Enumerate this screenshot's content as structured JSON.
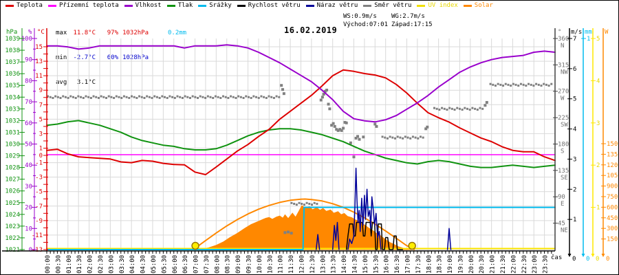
{
  "title": "16.02.2019",
  "legend": [
    {
      "label": "Teplota",
      "color": "#dd0000",
      "text_color": "#000000"
    },
    {
      "label": "Přízemní teplota",
      "color": "#ff00ff",
      "text_color": "#000000"
    },
    {
      "label": "Vlhkost",
      "color": "#9900cc",
      "text_color": "#000000"
    },
    {
      "label": "Tlak",
      "color": "#109310",
      "text_color": "#000000"
    },
    {
      "label": "Srážky",
      "color": "#00bbee",
      "text_color": "#000000"
    },
    {
      "label": "Rychlost větru",
      "color": "#000000",
      "text_color": "#000000"
    },
    {
      "label": "Náraz větru",
      "color": "#000099",
      "text_color": "#000000"
    },
    {
      "label": "Směr větru",
      "color": "#808080",
      "text_color": "#000000"
    },
    {
      "label": "UV index",
      "color": "#f0e000",
      "text_color": "#e8d800"
    },
    {
      "label": "Solar",
      "color": "#ff8800",
      "text_color": "#ff8800"
    }
  ],
  "stats": {
    "max_label": "max",
    "max_temp": "11.8°C",
    "max_hum": "97%",
    "max_pres": "1032hPa",
    "precip": "0.2mm",
    "min_label": "min",
    "min_temp": "-2.7°C",
    "min_hum": "60%",
    "min_pres": "1028hPa",
    "avg_label": "avg",
    "avg_temp": "3.1°C"
  },
  "wind_stats": {
    "ws": "WS:0.9m/s",
    "wg": "WG:2.7m/s",
    "sunrise": "Východ:07:01",
    "sunset": "Západ:17:15"
  },
  "colors": {
    "temp": "#dd0000",
    "ground_temp": "#ff00ff",
    "humidity": "#9900cc",
    "pressure": "#109310",
    "precip": "#00bbee",
    "wind_speed": "#000000",
    "wind_gust": "#000099",
    "wind_dir": "#808080",
    "uv": "#ffe800",
    "uv_text": "#e8d800",
    "solar": "#ff8800",
    "grid": "#d9d9d9",
    "axis_dir": "#404040",
    "dir_label": "#707070",
    "sun_fill": "#ffee00",
    "sun_stroke": "#997700"
  },
  "chart_data": {
    "type": "line",
    "title": "16.02.2019",
    "xlabel": "čas",
    "x_hours_range": [
      0,
      24
    ],
    "grid": true,
    "time_labels": [
      "00:00",
      "00:30",
      "01:00",
      "01:30",
      "02:00",
      "02:30",
      "03:00",
      "03:30",
      "04:00",
      "04:30",
      "05:00",
      "05:30",
      "06:00",
      "06:30",
      "07:00",
      "07:30",
      "08:00",
      "08:30",
      "09:00",
      "09:30",
      "10:00",
      "10:30",
      "11:00",
      "11:30",
      "12:00",
      "12:30",
      "13:00",
      "13:30",
      "14:00",
      "14:30",
      "15:00",
      "15:30",
      "16:00",
      "16:30",
      "17:00",
      "17:30",
      "18:00",
      "18:30",
      "19:00",
      "19:30",
      "20:00",
      "20:30",
      "21:00",
      "21:30",
      "22:00",
      "22:30",
      "23:00",
      "23:30"
    ],
    "axes": {
      "temp_c": {
        "header": "°C",
        "min": -13,
        "max": 15,
        "tick_step": 1,
        "label_values": [
          15,
          13,
          11,
          9,
          7,
          5,
          3,
          1,
          0,
          -1,
          -3,
          -5,
          -7,
          -9,
          -11,
          -13
        ]
      },
      "humidity_pct": {
        "header": "%",
        "min": 0,
        "max": 100,
        "tick_step": 5,
        "label_values": [
          100,
          90,
          80,
          70,
          60,
          50,
          40,
          30,
          20,
          10,
          0
        ]
      },
      "pressure_hpa": {
        "header": "hPa",
        "min": 1021,
        "max": 1039,
        "tick_step": 1,
        "label_values": [
          1039,
          1038,
          1037,
          1036,
          1035,
          1034,
          1033,
          1032,
          1031,
          1030,
          1029,
          1028,
          1027,
          1026,
          1025,
          1024,
          1023,
          1022,
          1021
        ]
      },
      "wind_dir_deg": {
        "header": "°",
        "min": 0,
        "max": 360,
        "tick_step": 45,
        "compass": [
          [
            360,
            "N"
          ],
          [
            315,
            "NW"
          ],
          [
            270,
            "W"
          ],
          [
            225,
            "SW"
          ],
          [
            180,
            "S"
          ],
          [
            135,
            "SE"
          ],
          [
            90,
            "E"
          ],
          [
            45,
            "NE"
          ]
        ]
      },
      "wind_ms": {
        "header": "m/s",
        "min": 0,
        "max": 7,
        "tick_step": 1,
        "label_values": [
          7,
          6,
          5,
          4,
          3,
          2,
          1
        ],
        "zero_label": "0"
      },
      "precip_mm": {
        "header": "mm",
        "min": 0,
        "max": 1,
        "label_values": [
          1
        ],
        "zero_label": "0"
      },
      "uv_index": {
        "header": "",
        "min": 0,
        "max": 5,
        "tick_step": 1,
        "label_values": [
          5,
          4,
          3,
          2,
          1
        ],
        "zero_label": "0"
      },
      "solar_w": {
        "header": "W",
        "min": 0,
        "max": 1500,
        "tick_step": 150,
        "label_values": [
          1500,
          1350,
          1200,
          1050,
          900,
          750,
          600,
          450,
          300,
          150
        ],
        "zero_label": "0"
      }
    },
    "series": {
      "teplota_c": {
        "step_h": 0.5,
        "values": [
          0.7,
          0.85,
          0.2,
          -0.2,
          -0.3,
          -0.4,
          -0.5,
          -0.9,
          -1.0,
          -0.7,
          -0.8,
          -1.1,
          -1.25,
          -1.3,
          -2.3,
          -2.65,
          -1.6,
          -0.5,
          0.6,
          1.5,
          2.6,
          3.6,
          5.0,
          6.1,
          7.2,
          8.3,
          9.6,
          11.0,
          11.8,
          11.6,
          11.3,
          11.1,
          10.7,
          9.8,
          8.6,
          7.2,
          5.9,
          5.2,
          4.6,
          3.8,
          3.1,
          2.4,
          1.9,
          1.2,
          0.7,
          0.5,
          0.5,
          -0.2,
          -0.7
        ]
      },
      "vlhkost_pct": {
        "step_h": 0.5,
        "values": [
          96.5,
          96.5,
          96,
          95,
          95.5,
          96.5,
          96.5,
          96.5,
          96.5,
          96.5,
          96.5,
          96.5,
          96.5,
          95.5,
          96.5,
          96.5,
          96.5,
          97,
          96.5,
          95.5,
          93.5,
          91,
          88.5,
          85.5,
          82.5,
          79.5,
          75.5,
          71,
          65.5,
          62,
          61,
          60.5,
          61.5,
          63.5,
          66.5,
          69.5,
          73,
          77,
          80.5,
          84,
          86.5,
          88.5,
          90,
          91,
          91.5,
          92,
          93.5,
          94,
          93.5
        ]
      },
      "tlak_hpa": {
        "step_h": 0.5,
        "values": [
          1031.6,
          1031.7,
          1031.9,
          1032.0,
          1031.8,
          1031.6,
          1031.3,
          1031.0,
          1030.6,
          1030.3,
          1030.1,
          1029.9,
          1029.8,
          1029.6,
          1029.5,
          1029.5,
          1029.6,
          1029.9,
          1030.3,
          1030.7,
          1031.0,
          1031.2,
          1031.3,
          1031.3,
          1031.2,
          1031.0,
          1030.8,
          1030.5,
          1030.2,
          1029.8,
          1029.4,
          1029.1,
          1028.8,
          1028.6,
          1028.4,
          1028.3,
          1028.5,
          1028.6,
          1028.5,
          1028.3,
          1028.1,
          1028.0,
          1028.0,
          1028.1,
          1028.2,
          1028.1,
          1028.0,
          1028.1,
          1028.2
        ]
      },
      "prizemni_teplota_c": [
        [
          0,
          0.1
        ],
        [
          24,
          0.1
        ]
      ],
      "srazky_mm": [
        [
          0,
          0
        ],
        [
          12.1,
          0
        ],
        [
          12.15,
          0.2
        ],
        [
          24,
          0.2
        ]
      ],
      "uv_index": [
        [
          0,
          0
        ],
        [
          24,
          0
        ]
      ],
      "solar_w": [
        [
          7.15,
          0
        ],
        [
          7.35,
          8
        ],
        [
          7.65,
          25
        ],
        [
          8.0,
          60
        ],
        [
          8.35,
          110
        ],
        [
          8.65,
          170
        ],
        [
          9.0,
          230
        ],
        [
          9.35,
          300
        ],
        [
          9.65,
          355
        ],
        [
          10.0,
          400
        ],
        [
          10.15,
          420
        ],
        [
          10.35,
          445
        ],
        [
          10.5,
          455
        ],
        [
          10.65,
          430
        ],
        [
          10.85,
          462
        ],
        [
          11.0,
          475
        ],
        [
          11.15,
          445
        ],
        [
          11.25,
          492
        ],
        [
          11.4,
          438
        ],
        [
          11.6,
          515
        ],
        [
          11.75,
          458
        ],
        [
          11.9,
          540
        ],
        [
          12.05,
          622
        ],
        [
          12.2,
          585
        ],
        [
          12.4,
          608
        ],
        [
          12.55,
          565
        ],
        [
          12.75,
          592
        ],
        [
          12.9,
          558
        ],
        [
          13.05,
          582
        ],
        [
          13.2,
          542
        ],
        [
          13.4,
          562
        ],
        [
          13.55,
          515
        ],
        [
          13.75,
          538
        ],
        [
          13.9,
          495
        ],
        [
          14.05,
          512
        ],
        [
          14.2,
          470
        ],
        [
          14.4,
          452
        ],
        [
          14.55,
          425
        ],
        [
          14.75,
          398
        ],
        [
          14.9,
          368
        ],
        [
          15.05,
          338
        ],
        [
          15.2,
          305
        ],
        [
          15.4,
          268
        ],
        [
          15.55,
          232
        ],
        [
          15.75,
          198
        ],
        [
          15.9,
          163
        ],
        [
          16.05,
          130
        ],
        [
          16.2,
          100
        ],
        [
          16.4,
          72
        ],
        [
          16.55,
          46
        ],
        [
          16.75,
          27
        ],
        [
          16.9,
          13
        ],
        [
          17.05,
          5
        ],
        [
          17.25,
          0
        ]
      ],
      "solar_model_w": [
        [
          6.95,
          0
        ],
        [
          7.0,
          18
        ],
        [
          7.5,
          128
        ],
        [
          8.0,
          235
        ],
        [
          8.5,
          335
        ],
        [
          9.0,
          425
        ],
        [
          9.5,
          505
        ],
        [
          10.0,
          572
        ],
        [
          10.5,
          625
        ],
        [
          11.0,
          668
        ],
        [
          11.5,
          698
        ],
        [
          12.0,
          714
        ],
        [
          12.2,
          716
        ],
        [
          12.5,
          709
        ],
        [
          13.0,
          689
        ],
        [
          13.5,
          650
        ],
        [
          14.0,
          598
        ],
        [
          14.5,
          530
        ],
        [
          15.0,
          450
        ],
        [
          15.5,
          360
        ],
        [
          16.0,
          263
        ],
        [
          16.5,
          160
        ],
        [
          17.0,
          55
        ],
        [
          17.35,
          0
        ]
      ],
      "rychlost_vetru_ms": [
        [
          [
            14.15,
            0
          ],
          [
            14.22,
            0.45
          ],
          [
            14.3,
            0.85
          ],
          [
            14.45,
            0.85
          ],
          [
            14.5,
            0.45
          ],
          [
            14.57,
            0.45
          ],
          [
            14.63,
            0.9
          ],
          [
            14.9,
            0.9
          ],
          [
            14.95,
            0.45
          ],
          [
            15.02,
            0.45
          ],
          [
            15.08,
            0.9
          ],
          [
            15.27,
            0.9
          ],
          [
            15.32,
            0.45
          ],
          [
            15.38,
            0.9
          ],
          [
            15.48,
            0.9
          ],
          [
            15.53,
            0
          ],
          [
            15.6,
            0
          ],
          [
            15.65,
            0.85
          ],
          [
            15.8,
            0.85
          ],
          [
            15.85,
            0
          ],
          [
            15.95,
            0
          ],
          [
            16.0,
            0.4
          ],
          [
            16.1,
            0.4
          ],
          [
            16.17,
            0
          ],
          [
            16.35,
            0
          ],
          [
            16.4,
            0.45
          ],
          [
            16.5,
            0.45
          ],
          [
            16.55,
            0
          ],
          [
            16.8,
            0
          ]
        ]
      ],
      "naraz_vetru_ms": [
        [
          [
            12.72,
            0
          ],
          [
            12.8,
            0.5
          ],
          [
            12.88,
            0
          ]
        ],
        [
          [
            13.5,
            0
          ],
          [
            13.58,
            0.8
          ],
          [
            13.65,
            0.3
          ],
          [
            13.72,
            0.9
          ],
          [
            13.8,
            0
          ]
        ],
        [
          [
            14.22,
            0
          ],
          [
            14.3,
            0.35
          ],
          [
            14.4,
            0.2
          ],
          [
            14.5,
            0.45
          ],
          [
            14.55,
            1.4
          ],
          [
            14.6,
            2.7
          ],
          [
            14.65,
            1.6
          ],
          [
            14.7,
            0.9
          ],
          [
            14.75,
            1.3
          ],
          [
            14.8,
            0.6
          ],
          [
            14.87,
            1.7
          ],
          [
            14.93,
            0.8
          ],
          [
            15.0,
            1.8
          ],
          [
            15.05,
            1.0
          ],
          [
            15.12,
            2.0
          ],
          [
            15.18,
            1.1
          ],
          [
            15.25,
            1.3
          ],
          [
            15.3,
            0.7
          ],
          [
            15.35,
            1.75
          ],
          [
            15.42,
            1.3
          ],
          [
            15.48,
            0.8
          ],
          [
            15.55,
            1.2
          ],
          [
            15.62,
            0.4
          ],
          [
            15.7,
            0.6
          ],
          [
            15.78,
            0
          ]
        ],
        [
          [
            18.92,
            0
          ],
          [
            19.0,
            0.7
          ],
          [
            19.08,
            0
          ]
        ]
      ],
      "smer_vetru_segments": [
        {
          "from": 0.05,
          "to": 11.05,
          "deg": 260
        },
        {
          "from": 11.56,
          "to": 12.76,
          "deg": 78
        },
        {
          "from": 15.85,
          "to": 17.8,
          "deg": 191
        },
        {
          "from": 18.3,
          "to": 20.6,
          "deg": 240
        },
        {
          "from": 20.95,
          "to": 23.95,
          "deg": 281
        }
      ],
      "smer_vetru_dots": [
        [
          11.08,
          280
        ],
        [
          11.14,
          273
        ],
        [
          11.2,
          266
        ],
        [
          11.25,
          29
        ],
        [
          11.4,
          30
        ],
        [
          11.55,
          28
        ],
        [
          12.95,
          255
        ],
        [
          13.02,
          260
        ],
        [
          13.08,
          265
        ],
        [
          13.15,
          270
        ],
        [
          13.22,
          272
        ],
        [
          13.3,
          248
        ],
        [
          13.36,
          240
        ],
        [
          13.45,
          212
        ],
        [
          13.53,
          215
        ],
        [
          13.6,
          210
        ],
        [
          13.68,
          205
        ],
        [
          13.76,
          203
        ],
        [
          13.84,
          205
        ],
        [
          13.92,
          203
        ],
        [
          14.0,
          207
        ],
        [
          14.08,
          217
        ],
        [
          14.15,
          216
        ],
        [
          14.35,
          182
        ],
        [
          14.5,
          158
        ],
        [
          14.6,
          190
        ],
        [
          14.68,
          193
        ],
        [
          14.76,
          188
        ],
        [
          14.95,
          192
        ],
        [
          15.5,
          214
        ],
        [
          15.57,
          210
        ],
        [
          17.9,
          206
        ],
        [
          17.97,
          209
        ],
        [
          20.7,
          246
        ],
        [
          20.78,
          251
        ]
      ],
      "sun_markers_h": [
        7.017,
        17.25
      ]
    }
  }
}
